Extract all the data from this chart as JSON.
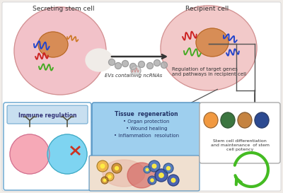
{
  "bg_color": "#f0ece8",
  "secreting_cell_label": "Secreting stem cell",
  "recipient_cell_label": "Recipient cell",
  "evs_label": "EVs containing ncRNAs",
  "regulation_label": "Regulation of target genes\nand pathways in recipient cell",
  "immune_label": "Immune regulation",
  "tissue_title": "Tissue  regeneration",
  "tissue_items": [
    "• Organ protection",
    "• Wound healing",
    "• Inflammation  resolution"
  ],
  "stem_diff_label": "Stem cell differentiation\nand maintenance  of stem\ncell potency",
  "cell1_color": "#f0b8c0",
  "cell2_color": "#f0c0c0",
  "nucleus_color": "#d4874a",
  "box_immune_edge": "#7ab0d4",
  "box_tissue_fill": "#9ecfee",
  "box_tissue_edge": "#5090c0",
  "arrow_color": "#555555",
  "green_arrow_color": "#44bb22",
  "rna_colors": [
    "#2244cc",
    "#cc2222",
    "#44aa22",
    "#cc7722"
  ],
  "ev_color": "#a0a0a0",
  "stem_cell_colors": [
    "#f09030",
    "#2a6a30",
    "#c07830",
    "#1a3a88"
  ]
}
